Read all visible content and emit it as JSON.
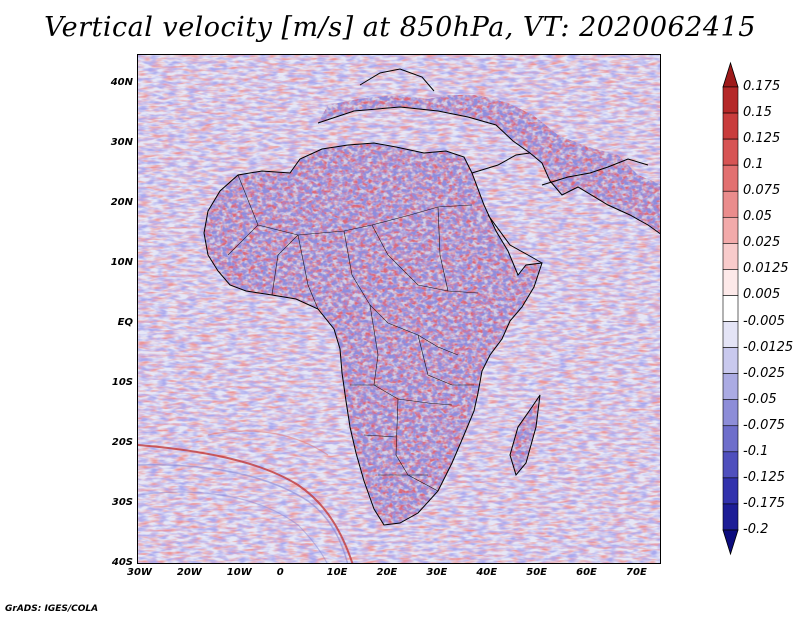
{
  "title": "Vertical velocity [m/s] at 850hPa, VT: 2020062415",
  "credit": "GrADS: IGES/COLA",
  "map": {
    "lon_range": [
      -30,
      75
    ],
    "lat_range": [
      -40,
      45
    ],
    "x_ticks": [
      "30W",
      "20W",
      "10W",
      "0",
      "10E",
      "20E",
      "30E",
      "40E",
      "50E",
      "60E",
      "70E"
    ],
    "y_ticks": [
      "40N",
      "30N",
      "20N",
      "10N",
      "EQ",
      "10S",
      "20S",
      "30S",
      "40S"
    ],
    "land_color": "#c9c2de",
    "ocean_color": "#e4e6f5",
    "coastline_color": "#000000"
  },
  "colorbar": {
    "levels": [
      "0.175",
      "0.15",
      "0.125",
      "0.1",
      "0.075",
      "0.05",
      "0.025",
      "0.0125",
      "0.005",
      "-0.005",
      "-0.0125",
      "-0.025",
      "-0.05",
      "-0.075",
      "-0.1",
      "-0.125",
      "-0.175",
      "-0.2"
    ],
    "colors": [
      "#9e1a1a",
      "#b52828",
      "#c93c3c",
      "#d75454",
      "#e27070",
      "#ea8c8c",
      "#f2aaaa",
      "#f8cbcb",
      "#fde9e9",
      "#ffffff",
      "#e4e4f6",
      "#c9c9ee",
      "#ababe3",
      "#8d8dd8",
      "#6e6ecb",
      "#4f4fbd",
      "#3232ad",
      "#1d1d96",
      "#0c0c7e"
    ]
  }
}
